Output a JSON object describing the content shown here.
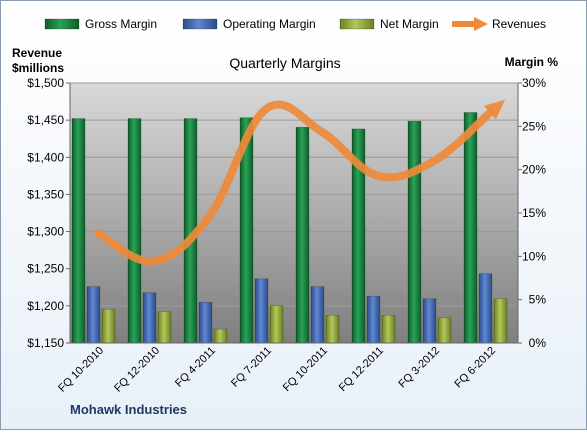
{
  "chart_data": {
    "type": "bar",
    "title": "Quarterly Margins",
    "company": "Mohawk Industries",
    "left_axis_label": [
      "Revenue",
      "$millions"
    ],
    "right_axis_label": "Margin %",
    "categories": [
      "FQ 10-2010",
      "FQ 12-2010",
      "FQ 4-2011",
      "FQ 7-2011",
      "FQ 10-2011",
      "FQ 12-2011",
      "FQ 3-2012",
      "FQ 6-2012"
    ],
    "left_axis": {
      "min": 1150,
      "max": 1500,
      "step": 50,
      "ticks": [
        "$1,150",
        "$1,200",
        "$1,250",
        "$1,300",
        "$1,350",
        "$1,400",
        "$1,450",
        "$1,500"
      ]
    },
    "right_axis": {
      "min": 0,
      "max": 30,
      "step": 5,
      "ticks": [
        "0%",
        "5%",
        "10%",
        "15%",
        "20%",
        "25%",
        "30%"
      ]
    },
    "series": [
      {
        "name": "Gross Margin",
        "axis": "right",
        "kind": "bar",
        "color": "#1e7a3e",
        "values": [
          25.9,
          25.9,
          25.9,
          26.0,
          24.9,
          24.7,
          25.6,
          26.6
        ]
      },
      {
        "name": "Operating Margin",
        "axis": "right",
        "kind": "bar",
        "color": "#3f67b0",
        "values": [
          6.5,
          5.8,
          4.7,
          7.4,
          6.5,
          5.4,
          5.1,
          8.0
        ]
      },
      {
        "name": "Net Margin",
        "axis": "right",
        "kind": "bar",
        "color": "#8fa83c",
        "values": [
          3.9,
          3.6,
          1.6,
          4.3,
          3.2,
          3.2,
          2.9,
          5.1
        ]
      },
      {
        "name": "Revenues",
        "axis": "left",
        "kind": "line",
        "color": "#ee8a3a",
        "values": [
          1298,
          1260,
          1322,
          1465,
          1434,
          1375,
          1395,
          1460
        ]
      }
    ],
    "legend": [
      "Gross Margin",
      "Operating Margin",
      "Net Margin",
      "Revenues"
    ],
    "legend_position": "top",
    "grid": true
  }
}
